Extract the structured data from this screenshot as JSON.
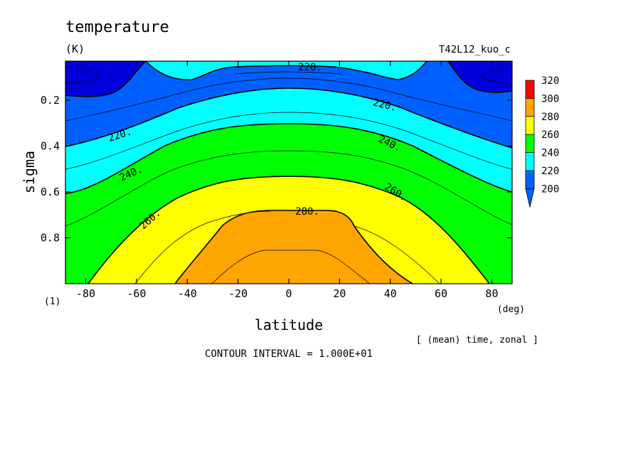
{
  "chart_data": {
    "type": "contour",
    "title": "temperature",
    "units": "(K)",
    "run_label": "T42L12_kuo_c",
    "xlabel": "latitude",
    "xunit": "(deg)",
    "ylabel": "sigma",
    "ylabel_note": "(1)",
    "averaging_note": "[ (mean) time, zonal ]",
    "contour_interval_text": "CONTOUR INTERVAL = 1.000E+01",
    "xlim": [
      -88,
      88
    ],
    "ylim": [
      1.0,
      0.03
    ],
    "x_ticks": [
      -80,
      -60,
      -40,
      -20,
      0,
      20,
      40,
      60,
      80
    ],
    "x_tick_labels": [
      "-80",
      "-60",
      "-40",
      "-20",
      "0",
      "20",
      "40",
      "60",
      "80"
    ],
    "y_ticks": [
      0.2,
      0.4,
      0.6,
      0.8
    ],
    "y_tick_labels": [
      "0.2",
      "0.4",
      "0.6",
      "0.8"
    ],
    "colorbar": {
      "levels": [
        200,
        220,
        240,
        260,
        280,
        300,
        320
      ],
      "labels": [
        "320",
        "300",
        "280",
        "260",
        "240",
        "220",
        "200"
      ],
      "colors": [
        "#0000dd",
        "#0060ff",
        "#00ffff",
        "#00ff00",
        "#ffff00",
        "#ffa500",
        "#ff0000"
      ],
      "extend_below": true
    },
    "contour_labels": [
      {
        "text": "220.",
        "x": 8,
        "y": 0.07
      },
      {
        "text": "220.",
        "x": 37,
        "y": 0.21
      },
      {
        "text": "220.",
        "x": -67,
        "y": 0.34
      },
      {
        "text": "240.",
        "x": 40,
        "y": 0.39
      },
      {
        "text": "240.",
        "x": -62,
        "y": 0.51
      },
      {
        "text": "260.",
        "x": 42,
        "y": 0.59
      },
      {
        "text": "260.",
        "x": -54,
        "y": 0.7
      },
      {
        "text": "280.",
        "x": 8,
        "y": 0.69
      }
    ],
    "iso_lines": [
      {
        "level": 280,
        "points": [
          [
            -27,
            1.0
          ],
          [
            -18,
            0.83
          ],
          [
            -8,
            0.69
          ],
          [
            0,
            0.67
          ],
          [
            8,
            0.67
          ],
          [
            16,
            0.68
          ],
          [
            22,
            0.82
          ],
          [
            48,
            1.0
          ]
        ]
      },
      {
        "level": 260,
        "points": [
          [
            -78,
            1.0
          ],
          [
            -64,
            0.8
          ],
          [
            -44,
            0.6
          ],
          [
            -26,
            0.52
          ],
          [
            -10,
            0.47
          ],
          [
            10,
            0.47
          ],
          [
            26,
            0.52
          ],
          [
            44,
            0.58
          ],
          [
            64,
            0.76
          ],
          [
            78,
            1.0
          ]
        ]
      },
      {
        "level": 240,
        "points": [
          [
            -88,
            0.56
          ],
          [
            -70,
            0.52
          ],
          [
            -44,
            0.41
          ],
          [
            -20,
            0.34
          ],
          [
            0,
            0.32
          ],
          [
            20,
            0.34
          ],
          [
            44,
            0.41
          ],
          [
            70,
            0.53
          ],
          [
            88,
            0.55
          ]
        ]
      },
      {
        "level": 220,
        "points": [
          [
            -88,
            0.37
          ],
          [
            -64,
            0.31
          ],
          [
            -40,
            0.24
          ],
          [
            -20,
            0.19
          ],
          [
            0,
            0.17
          ],
          [
            20,
            0.19
          ],
          [
            40,
            0.24
          ],
          [
            64,
            0.31
          ],
          [
            88,
            0.37
          ]
        ]
      }
    ]
  }
}
